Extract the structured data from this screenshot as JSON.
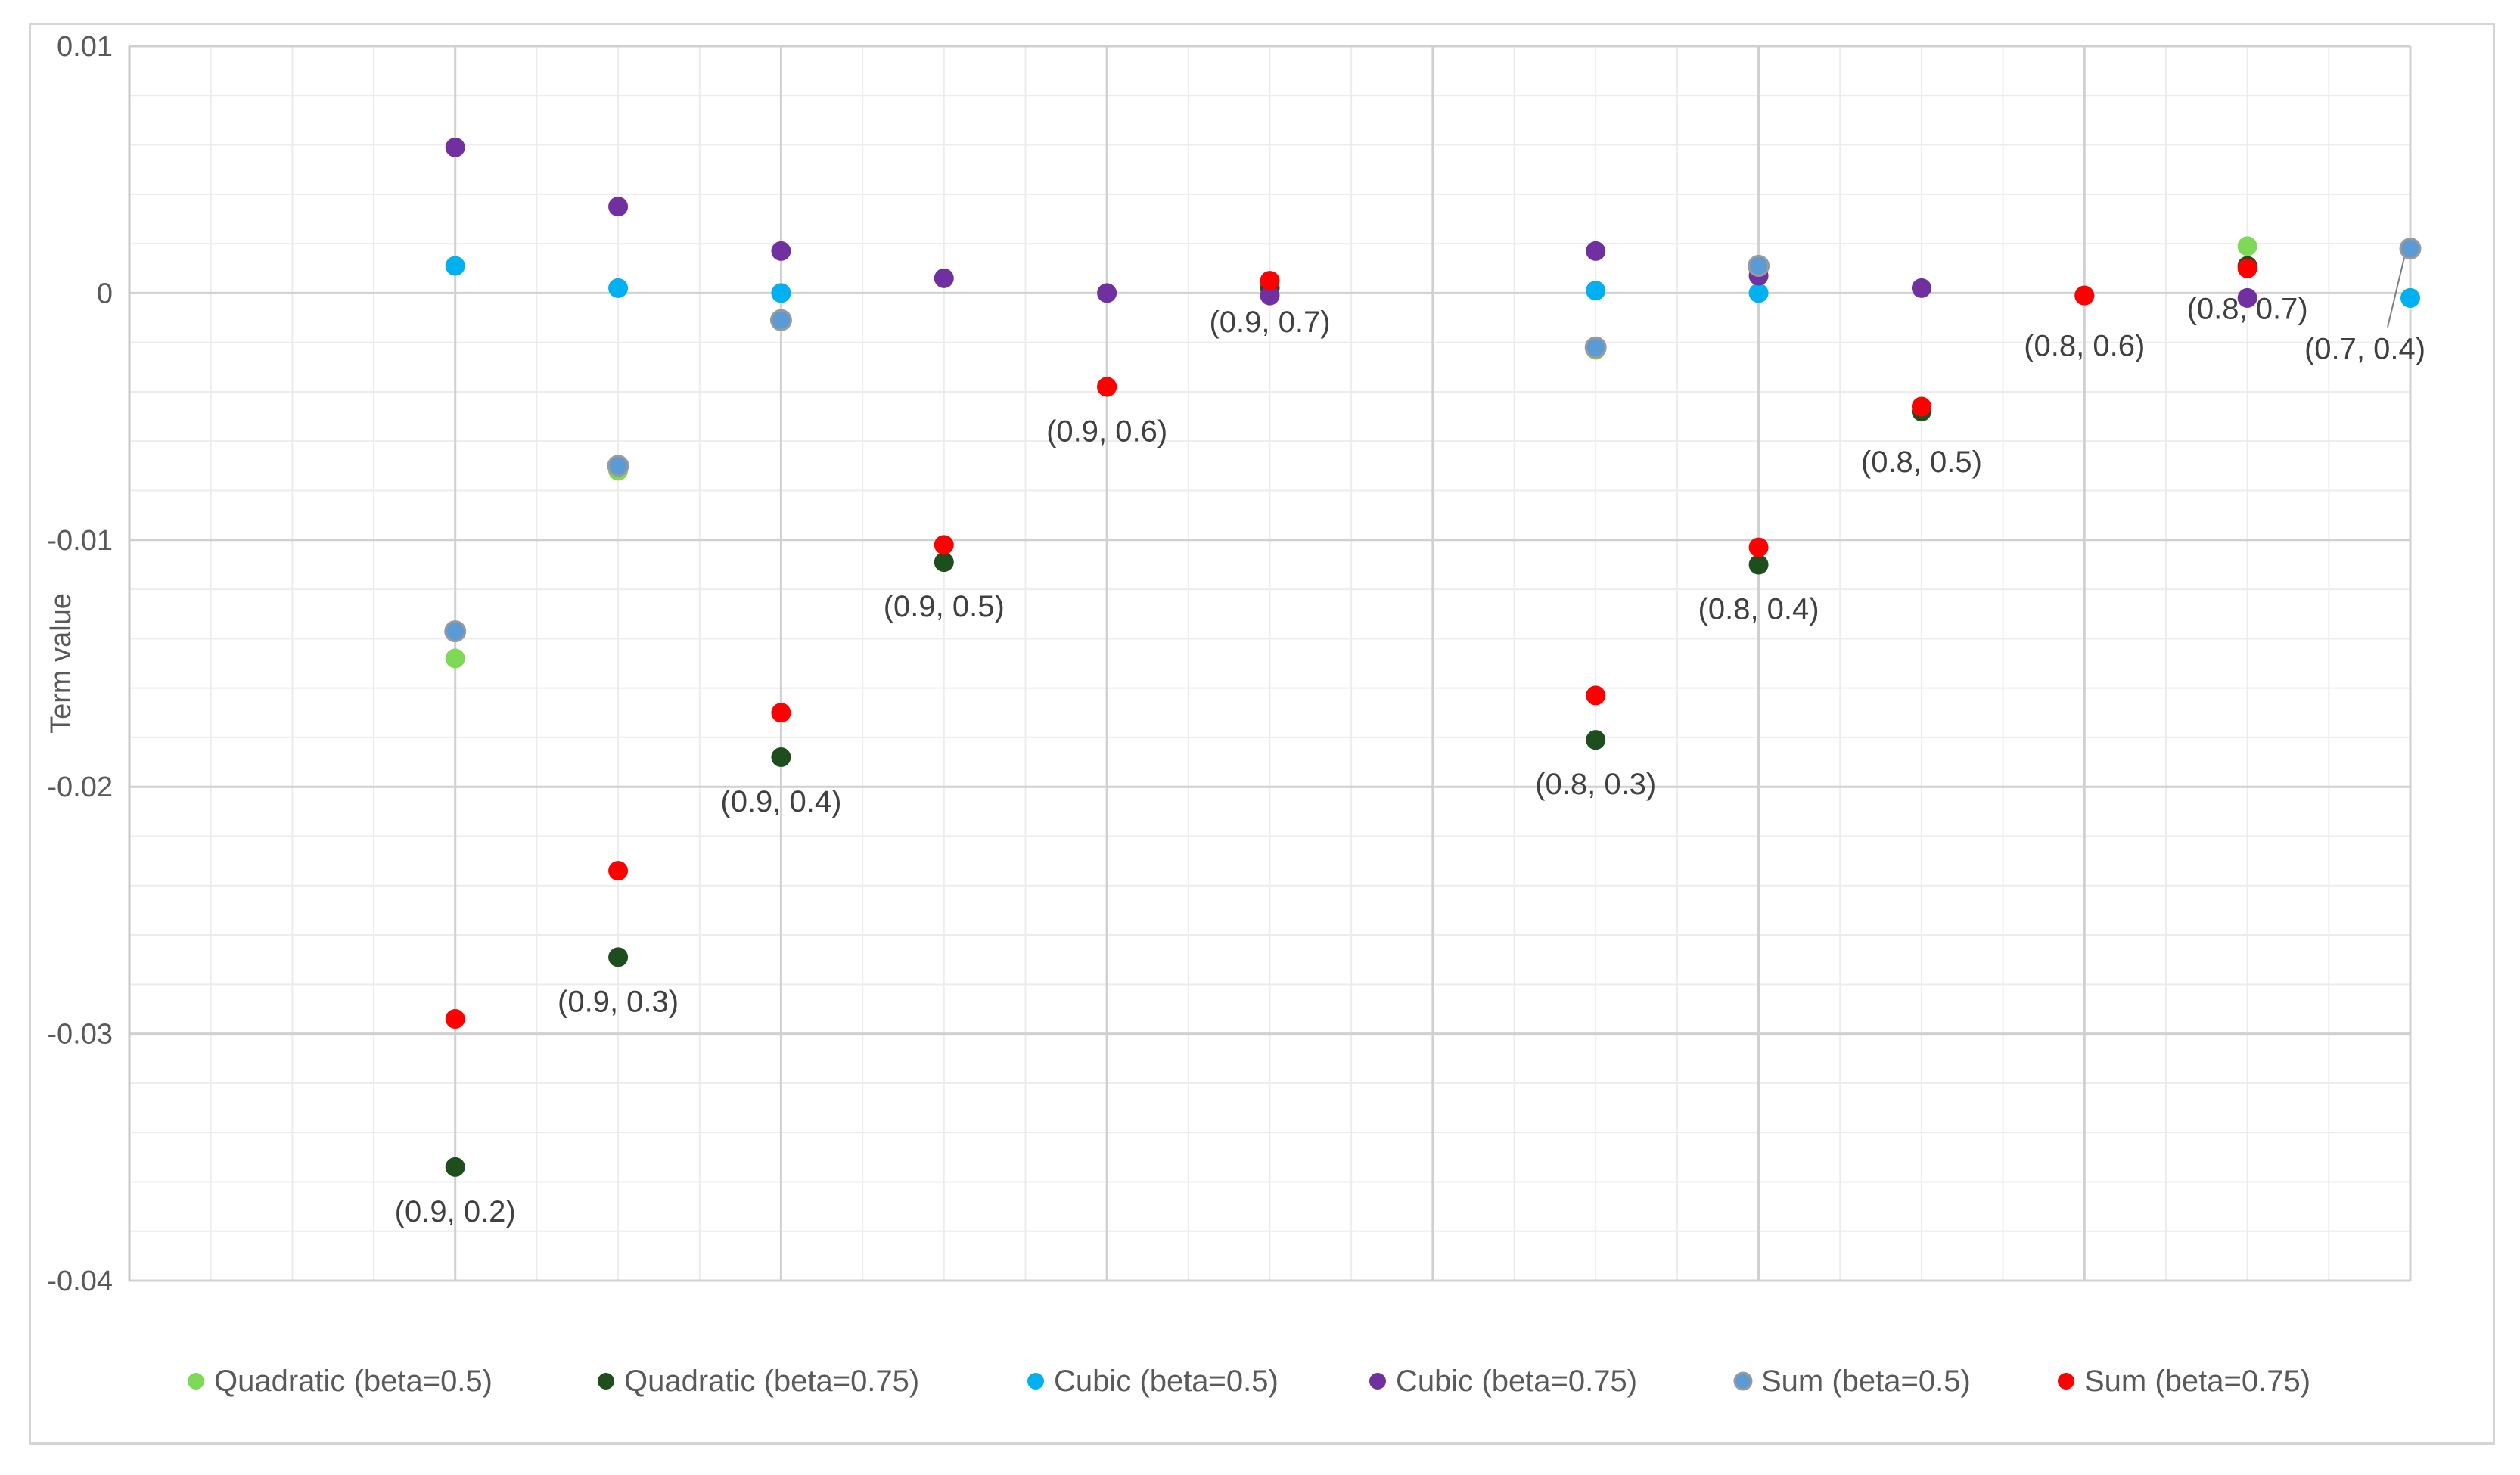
{
  "chart_data": {
    "type": "scatter",
    "title": "",
    "xlabel": "",
    "ylabel": "Term value",
    "xlim": [
      0,
      14
    ],
    "ylim": [
      -0.04,
      0.01
    ],
    "yticks": [
      0.01,
      0,
      -0.01,
      -0.02,
      -0.03,
      -0.04
    ],
    "ytick_labels": [
      "0.01",
      "0",
      "-0.01",
      "-0.02",
      "-0.03",
      "-0.04"
    ],
    "grid": true,
    "legend_position": "bottom",
    "series": [
      {
        "name": "Quadratic (beta=0.5)",
        "color": "#7ed957",
        "marker": "circle",
        "x": [
          2,
          3,
          9,
          13
        ],
        "y": [
          -0.0148,
          -0.0072,
          -0.0023,
          0.0019
        ]
      },
      {
        "name": "Quadratic (beta=0.75)",
        "color": "#1e4d1e",
        "marker": "circle",
        "x": [
          2,
          3,
          4,
          5,
          6,
          7,
          9,
          10,
          11,
          12,
          13
        ],
        "y": [
          -0.0354,
          -0.0269,
          -0.0188,
          -0.0109,
          -0.0038,
          0.0002,
          -0.0181,
          -0.011,
          -0.0048,
          -0.0001,
          0.0011
        ]
      },
      {
        "name": "Cubic (beta=0.5)",
        "color": "#00b0f0",
        "marker": "circle",
        "x": [
          2,
          3,
          4,
          9,
          10,
          14
        ],
        "y": [
          0.0011,
          0.0002,
          0.0,
          0.0001,
          0.0,
          -0.0002
        ]
      },
      {
        "name": "Cubic (beta=0.75)",
        "color": "#7030a0",
        "marker": "circle",
        "x": [
          2,
          3,
          4,
          5,
          6,
          7,
          9,
          10,
          11,
          13
        ],
        "y": [
          0.0059,
          0.0035,
          0.0017,
          0.0006,
          0.0,
          -0.0001,
          0.0017,
          0.0007,
          0.0002,
          -0.0002
        ]
      },
      {
        "name": "Sum (beta=0.5)",
        "color": "#5b9bd5",
        "marker": "circle",
        "x": [
          2,
          3,
          4,
          9,
          10,
          14
        ],
        "y": [
          -0.0137,
          -0.007,
          -0.0011,
          -0.0022,
          0.0011,
          0.0018
        ]
      },
      {
        "name": "Sum (beta=0.75)",
        "color": "#ff0000",
        "marker": "circle",
        "x": [
          2,
          3,
          4,
          5,
          6,
          7,
          9,
          10,
          11,
          12,
          13
        ],
        "y": [
          -0.0294,
          -0.0234,
          -0.017,
          -0.0102,
          -0.0038,
          0.0005,
          -0.0163,
          -0.0103,
          -0.0046,
          -0.0001,
          0.001
        ]
      }
    ],
    "annotations": [
      {
        "text": "(0.9, 0.2)",
        "x": 2,
        "y": -0.0354
      },
      {
        "text": "(0.9, 0.3)",
        "x": 3,
        "y": -0.0269
      },
      {
        "text": "(0.9, 0.4)",
        "x": 4,
        "y": -0.0188
      },
      {
        "text": "(0.9, 0.5)",
        "x": 5,
        "y": -0.0109
      },
      {
        "text": "(0.9, 0.6)",
        "x": 6,
        "y": -0.0038
      },
      {
        "text": "(0.9, 0.7)",
        "x": 7,
        "y": 0.0002
      },
      {
        "text": "(0.8, 0.3)",
        "x": 9,
        "y": -0.0181
      },
      {
        "text": "(0.8, 0.4)",
        "x": 10,
        "y": -0.011
      },
      {
        "text": "(0.8, 0.5)",
        "x": 11,
        "y": -0.0048
      },
      {
        "text": "(0.8, 0.6)",
        "x": 12,
        "y": -0.0001
      },
      {
        "text": "(0.8, 0.7)",
        "x": 13,
        "y": 0.0011
      },
      {
        "text": "(0.7, 0.4)",
        "x": 14,
        "y": 0.0018
      }
    ]
  }
}
